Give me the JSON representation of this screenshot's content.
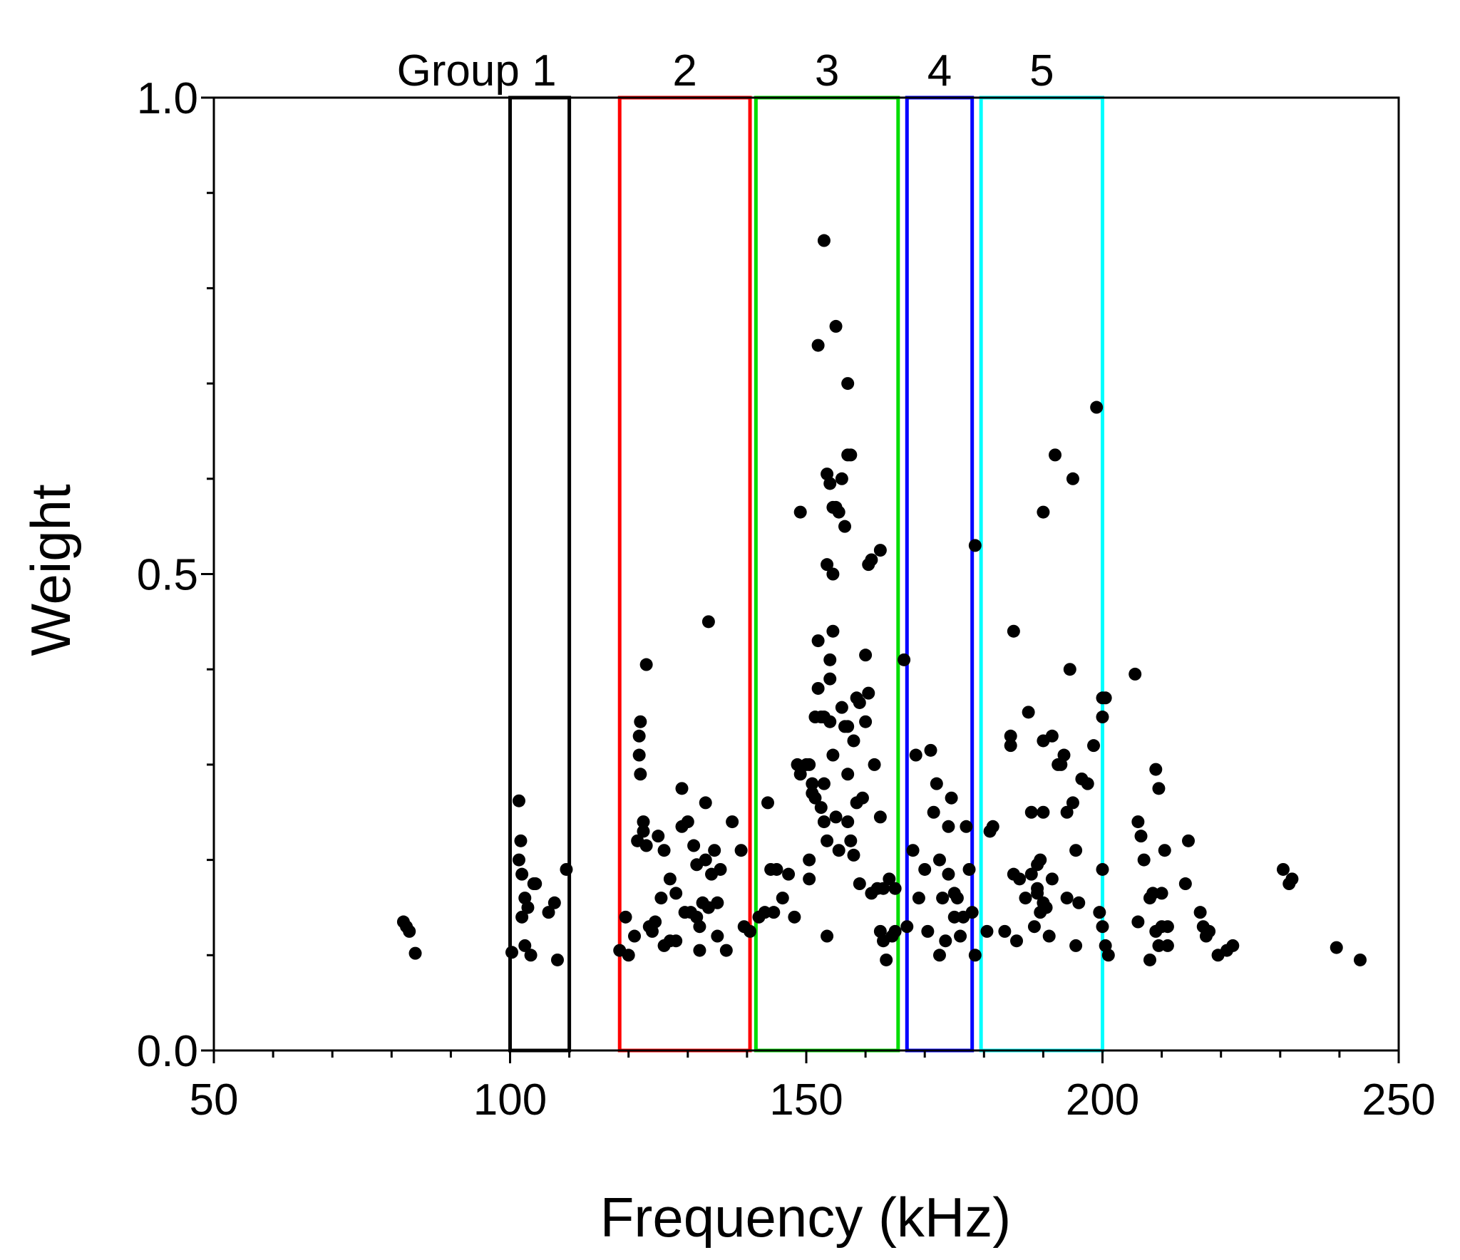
{
  "chart_data": {
    "type": "scatter",
    "title": "",
    "xlabel": "Frequency (kHz)",
    "ylabel": "Weight",
    "xlim": [
      50,
      250
    ],
    "ylim": [
      0,
      1
    ],
    "x_ticks": [
      {
        "value": 50,
        "label": "50"
      },
      {
        "value": 100,
        "label": "100"
      },
      {
        "value": 150,
        "label": "150"
      },
      {
        "value": 200,
        "label": "200"
      },
      {
        "value": 250,
        "label": "250"
      }
    ],
    "y_ticks": [
      {
        "value": 0,
        "label": "0.0"
      },
      {
        "value": 0.5,
        "label": "0.5"
      },
      {
        "value": 1,
        "label": "1.0"
      }
    ],
    "x_minor_step": 10,
    "y_minor_step": 0.1,
    "marker_color": "#000000",
    "groups": [
      {
        "label": "Group 1",
        "x_range": [
          100,
          110
        ],
        "color": "#000000"
      },
      {
        "label": "2",
        "x_range": [
          118.5,
          140.5
        ],
        "color": "#ff0000"
      },
      {
        "label": "3",
        "x_range": [
          141.5,
          165.5
        ],
        "color": "#00dd00"
      },
      {
        "label": "4",
        "x_range": [
          167,
          178
        ],
        "color": "#0000ff"
      },
      {
        "label": "5",
        "x_range": [
          179.5,
          200
        ],
        "color": "#00ffff"
      }
    ],
    "series": [
      {
        "name": "points",
        "points": [
          [
            82,
            0.135
          ],
          [
            82.5,
            0.13
          ],
          [
            83,
            0.125
          ],
          [
            84,
            0.102
          ],
          [
            100.3,
            0.103
          ],
          [
            101.5,
            0.262
          ],
          [
            101.5,
            0.2
          ],
          [
            101.8,
            0.22
          ],
          [
            102,
            0.185
          ],
          [
            102.5,
            0.16
          ],
          [
            102,
            0.14
          ],
          [
            103,
            0.15
          ],
          [
            102.5,
            0.11
          ],
          [
            103.5,
            0.1
          ],
          [
            104,
            0.175
          ],
          [
            104.3,
            0.175
          ],
          [
            106.5,
            0.145
          ],
          [
            107.5,
            0.155
          ],
          [
            108,
            0.095
          ],
          [
            109.5,
            0.19
          ],
          [
            118.5,
            0.105
          ],
          [
            119.5,
            0.14
          ],
          [
            120,
            0.1
          ],
          [
            121,
            0.12
          ],
          [
            121.5,
            0.22
          ],
          [
            121.8,
            0.33
          ],
          [
            121.8,
            0.31
          ],
          [
            122,
            0.345
          ],
          [
            122,
            0.29
          ],
          [
            122.5,
            0.23
          ],
          [
            122.5,
            0.24
          ],
          [
            123,
            0.405
          ],
          [
            123,
            0.215
          ],
          [
            123.5,
            0.13
          ],
          [
            124,
            0.125
          ],
          [
            124.5,
            0.135
          ],
          [
            125,
            0.225
          ],
          [
            125.5,
            0.16
          ],
          [
            126,
            0.21
          ],
          [
            126,
            0.11
          ],
          [
            127,
            0.18
          ],
          [
            127,
            0.115
          ],
          [
            128,
            0.165
          ],
          [
            128,
            0.115
          ],
          [
            129,
            0.275
          ],
          [
            129,
            0.235
          ],
          [
            129.5,
            0.145
          ],
          [
            130,
            0.24
          ],
          [
            130.5,
            0.145
          ],
          [
            131,
            0.215
          ],
          [
            131.5,
            0.195
          ],
          [
            131.5,
            0.14
          ],
          [
            132,
            0.13
          ],
          [
            132,
            0.105
          ],
          [
            132.5,
            0.155
          ],
          [
            133,
            0.26
          ],
          [
            133,
            0.2
          ],
          [
            133.5,
            0.45
          ],
          [
            133.5,
            0.15
          ],
          [
            134,
            0.185
          ],
          [
            134.5,
            0.21
          ],
          [
            135,
            0.155
          ],
          [
            135,
            0.12
          ],
          [
            135.5,
            0.19
          ],
          [
            136.5,
            0.105
          ],
          [
            137.5,
            0.24
          ],
          [
            139,
            0.21
          ],
          [
            139.5,
            0.13
          ],
          [
            140.5,
            0.125
          ],
          [
            142,
            0.14
          ],
          [
            143,
            0.145
          ],
          [
            143.5,
            0.26
          ],
          [
            144,
            0.19
          ],
          [
            144.5,
            0.145
          ],
          [
            145,
            0.19
          ],
          [
            146,
            0.16
          ],
          [
            147,
            0.185
          ],
          [
            148,
            0.14
          ],
          [
            148.5,
            0.3
          ],
          [
            149,
            0.565
          ],
          [
            149,
            0.29
          ],
          [
            150,
            0.3
          ],
          [
            150.5,
            0.3
          ],
          [
            150.5,
            0.2
          ],
          [
            150.5,
            0.18
          ],
          [
            151,
            0.28
          ],
          [
            151,
            0.27
          ],
          [
            151.5,
            0.35
          ],
          [
            151.5,
            0.265
          ],
          [
            152,
            0.74
          ],
          [
            152,
            0.43
          ],
          [
            152,
            0.38
          ],
          [
            152.5,
            0.35
          ],
          [
            152.5,
            0.255
          ],
          [
            153,
            0.85
          ],
          [
            153,
            0.35
          ],
          [
            153,
            0.28
          ],
          [
            153,
            0.24
          ],
          [
            153.5,
            0.605
          ],
          [
            153.5,
            0.51
          ],
          [
            153.5,
            0.22
          ],
          [
            153.5,
            0.12
          ],
          [
            154,
            0.595
          ],
          [
            154,
            0.41
          ],
          [
            154,
            0.39
          ],
          [
            154,
            0.345
          ],
          [
            154.5,
            0.57
          ],
          [
            154.5,
            0.5
          ],
          [
            154.5,
            0.44
          ],
          [
            154.5,
            0.31
          ],
          [
            155,
            0.76
          ],
          [
            155,
            0.57
          ],
          [
            155,
            0.245
          ],
          [
            155.5,
            0.565
          ],
          [
            155.5,
            0.21
          ],
          [
            156,
            0.6
          ],
          [
            156,
            0.36
          ],
          [
            156.5,
            0.55
          ],
          [
            156.5,
            0.34
          ],
          [
            157,
            0.625
          ],
          [
            157,
            0.7
          ],
          [
            157,
            0.34
          ],
          [
            157,
            0.29
          ],
          [
            157,
            0.24
          ],
          [
            157.5,
            0.625
          ],
          [
            157.5,
            0.22
          ],
          [
            158,
            0.205
          ],
          [
            158,
            0.325
          ],
          [
            158.5,
            0.37
          ],
          [
            158.5,
            0.26
          ],
          [
            159,
            0.365
          ],
          [
            159,
            0.175
          ],
          [
            159.5,
            0.265
          ],
          [
            160,
            0.415
          ],
          [
            160,
            0.345
          ],
          [
            160.5,
            0.51
          ],
          [
            160.5,
            0.375
          ],
          [
            161,
            0.515
          ],
          [
            161,
            0.165
          ],
          [
            161.5,
            0.3
          ],
          [
            162,
            0.17
          ],
          [
            162.5,
            0.525
          ],
          [
            162.5,
            0.245
          ],
          [
            162.5,
            0.125
          ],
          [
            163,
            0.17
          ],
          [
            163,
            0.115
          ],
          [
            163.5,
            0.095
          ],
          [
            164,
            0.18
          ],
          [
            164.5,
            0.12
          ],
          [
            165,
            0.17
          ],
          [
            165,
            0.125
          ],
          [
            166.5,
            0.41
          ],
          [
            167,
            0.13
          ],
          [
            168,
            0.21
          ],
          [
            168.5,
            0.31
          ],
          [
            169,
            0.16
          ],
          [
            170,
            0.19
          ],
          [
            170.5,
            0.125
          ],
          [
            171,
            0.315
          ],
          [
            171.5,
            0.25
          ],
          [
            172,
            0.28
          ],
          [
            172.5,
            0.2
          ],
          [
            172.5,
            0.1
          ],
          [
            173,
            0.16
          ],
          [
            173.5,
            0.115
          ],
          [
            174,
            0.235
          ],
          [
            174,
            0.185
          ],
          [
            174.5,
            0.265
          ],
          [
            175,
            0.14
          ],
          [
            175,
            0.165
          ],
          [
            175.5,
            0.16
          ],
          [
            176,
            0.12
          ],
          [
            176.5,
            0.14
          ],
          [
            177,
            0.235
          ],
          [
            177.5,
            0.19
          ],
          [
            178,
            0.145
          ],
          [
            178.5,
            0.53
          ],
          [
            178.5,
            0.1
          ],
          [
            180.5,
            0.125
          ],
          [
            181,
            0.23
          ],
          [
            181.5,
            0.235
          ],
          [
            183.5,
            0.125
          ],
          [
            184.5,
            0.32
          ],
          [
            184.5,
            0.33
          ],
          [
            185,
            0.44
          ],
          [
            185,
            0.185
          ],
          [
            185.5,
            0.115
          ],
          [
            186,
            0.18
          ],
          [
            187,
            0.16
          ],
          [
            187.5,
            0.355
          ],
          [
            188,
            0.25
          ],
          [
            188,
            0.185
          ],
          [
            188.5,
            0.13
          ],
          [
            189,
            0.165
          ],
          [
            189,
            0.17
          ],
          [
            189,
            0.195
          ],
          [
            189.5,
            0.2
          ],
          [
            189.5,
            0.145
          ],
          [
            190,
            0.565
          ],
          [
            190,
            0.25
          ],
          [
            190,
            0.325
          ],
          [
            190,
            0.155
          ],
          [
            190.5,
            0.15
          ],
          [
            191,
            0.12
          ],
          [
            191.5,
            0.33
          ],
          [
            191.5,
            0.18
          ],
          [
            192,
            0.625
          ],
          [
            192.5,
            0.3
          ],
          [
            193,
            0.3
          ],
          [
            193.5,
            0.31
          ],
          [
            194,
            0.25
          ],
          [
            194,
            0.16
          ],
          [
            194.5,
            0.4
          ],
          [
            195,
            0.6
          ],
          [
            195,
            0.26
          ],
          [
            195.5,
            0.21
          ],
          [
            195.5,
            0.11
          ],
          [
            196,
            0.155
          ],
          [
            196.5,
            0.285
          ],
          [
            197.5,
            0.28
          ],
          [
            198.5,
            0.32
          ],
          [
            199,
            0.675
          ],
          [
            199.5,
            0.145
          ],
          [
            200,
            0.37
          ],
          [
            200,
            0.35
          ],
          [
            200,
            0.19
          ],
          [
            200,
            0.13
          ],
          [
            200.5,
            0.37
          ],
          [
            200.5,
            0.11
          ],
          [
            201,
            0.1
          ],
          [
            205.5,
            0.395
          ],
          [
            206,
            0.24
          ],
          [
            206,
            0.135
          ],
          [
            206.5,
            0.225
          ],
          [
            207,
            0.2
          ],
          [
            208,
            0.16
          ],
          [
            208,
            0.095
          ],
          [
            208.5,
            0.165
          ],
          [
            209,
            0.295
          ],
          [
            209,
            0.125
          ],
          [
            209.5,
            0.275
          ],
          [
            209.5,
            0.11
          ],
          [
            210,
            0.13
          ],
          [
            210,
            0.165
          ],
          [
            210.5,
            0.21
          ],
          [
            211,
            0.13
          ],
          [
            211,
            0.11
          ],
          [
            214,
            0.175
          ],
          [
            214.5,
            0.22
          ],
          [
            216.5,
            0.145
          ],
          [
            217,
            0.13
          ],
          [
            217.5,
            0.12
          ],
          [
            218,
            0.125
          ],
          [
            219.5,
            0.1
          ],
          [
            221,
            0.105
          ],
          [
            222,
            0.11
          ],
          [
            230.5,
            0.19
          ],
          [
            231.5,
            0.175
          ],
          [
            232,
            0.18
          ],
          [
            239.5,
            0.108
          ],
          [
            243.5,
            0.095
          ]
        ]
      }
    ]
  }
}
